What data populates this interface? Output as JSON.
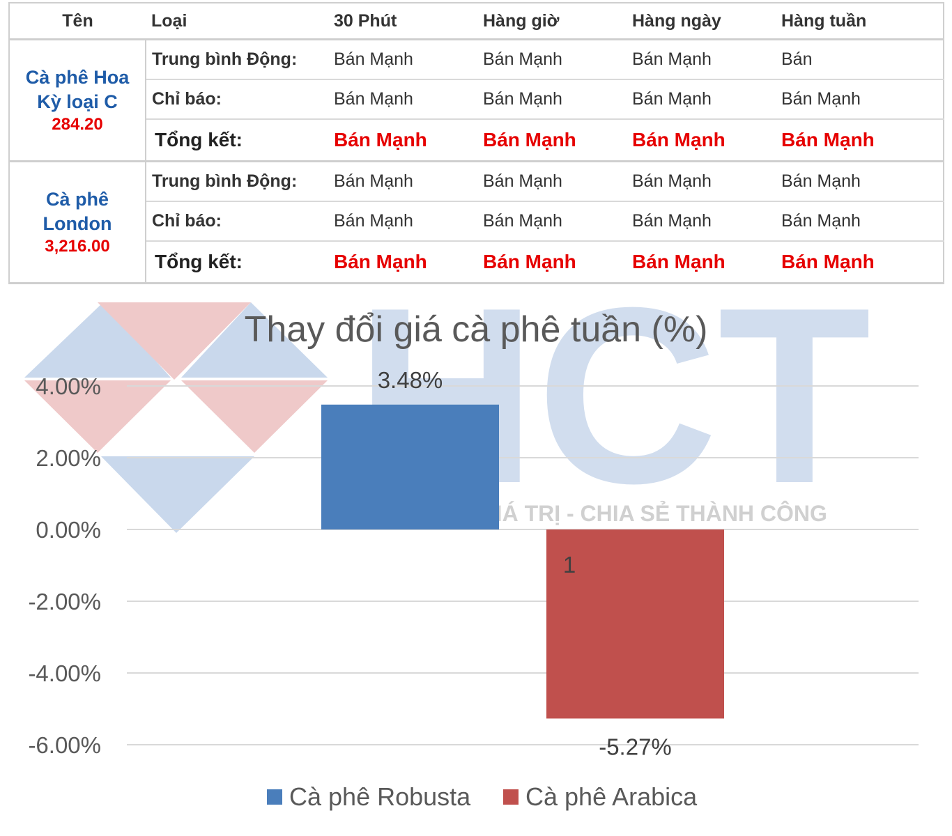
{
  "table": {
    "headers": [
      "Tên",
      "Loại",
      "30 Phút",
      "Hàng giờ",
      "Hàng ngày",
      "Hàng tuần"
    ],
    "groups": [
      {
        "name_lines": [
          "Cà phê Hoa",
          "Kỳ loại C"
        ],
        "price": "284.20",
        "rows": [
          {
            "label": "Trung bình Động:",
            "values": [
              "Bán Mạnh",
              "Bán Mạnh",
              "Bán Mạnh",
              "Bán"
            ]
          },
          {
            "label": "Chỉ báo:",
            "values": [
              "Bán Mạnh",
              "Bán Mạnh",
              "Bán Mạnh",
              "Bán Mạnh"
            ]
          },
          {
            "label": "Tổng kết:",
            "values": [
              "Bán Mạnh",
              "Bán Mạnh",
              "Bán Mạnh",
              "Bán Mạnh"
            ]
          }
        ]
      },
      {
        "name_lines": [
          "Cà phê",
          "London"
        ],
        "price": "3,216.00",
        "rows": [
          {
            "label": "Trung bình Động:",
            "values": [
              "Bán Mạnh",
              "Bán Mạnh",
              "Bán Mạnh",
              "Bán Mạnh"
            ]
          },
          {
            "label": "Chỉ báo:",
            "values": [
              "Bán Mạnh",
              "Bán Mạnh",
              "Bán Mạnh",
              "Bán Mạnh"
            ]
          },
          {
            "label": "Tổng kết:",
            "values": [
              "Bán Mạnh",
              "Bán Mạnh",
              "Bán Mạnh",
              "Bán Mạnh"
            ]
          }
        ]
      }
    ],
    "colors": {
      "name": "#1f5ca8",
      "price": "#e60000",
      "summary": "#e60000"
    }
  },
  "watermark": {
    "text": "HCT",
    "slogan": "KIẾN TẠO GIÁ TRỊ - CHIA SẺ THÀNH CÔNG",
    "colors": {
      "blue": "#c9d8ec",
      "red": "#efc9c9"
    }
  },
  "chart_data": {
    "type": "bar",
    "title": "Thay đổi giá cà phê tuần (%)",
    "categories": [
      "1"
    ],
    "series": [
      {
        "name": "Cà phê Robusta",
        "values": [
          3.48
        ],
        "label": "3.48%",
        "color": "#4a7ebb"
      },
      {
        "name": "Cà phê Arabica",
        "values": [
          -5.27
        ],
        "label": "-5.27%",
        "color": "#c0504d"
      }
    ],
    "y_ticks": [
      "4.00%",
      "2.00%",
      "0.00%",
      "-2.00%",
      "-4.00%",
      "-6.00%"
    ],
    "y_tick_values": [
      4,
      2,
      0,
      -2,
      -4,
      -6
    ],
    "ylim": [
      -6,
      4
    ],
    "grid": true,
    "legend": "bottom"
  }
}
